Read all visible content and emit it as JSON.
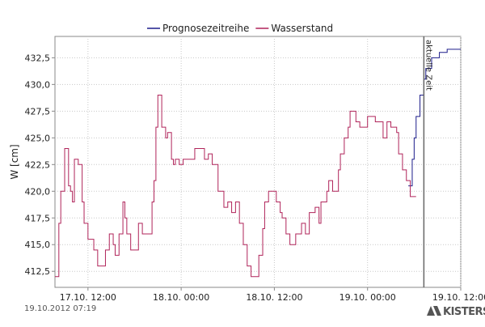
{
  "chart_data": {
    "type": "step-line",
    "y_label": "W [cm]",
    "xlim": [
      "17.10. 07:45",
      "19.10. 12:00"
    ],
    "xticks": [
      "17.10. 12:00",
      "18.10. 00:00",
      "18.10. 12:00",
      "19.10. 00:00",
      "19.10. 12:00"
    ],
    "ylim": [
      411,
      434.5
    ],
    "yticks": [
      {
        "value": 412.5,
        "label": "412,5"
      },
      {
        "value": 415,
        "label": "415,0"
      },
      {
        "value": 417.5,
        "label": "417,5"
      },
      {
        "value": 420,
        "label": "420,0"
      },
      {
        "value": 422.5,
        "label": "422,5"
      },
      {
        "value": 425,
        "label": "425,0"
      },
      {
        "value": 427.5,
        "label": "427,5"
      },
      {
        "value": 430,
        "label": "430,0"
      },
      {
        "value": 432.5,
        "label": "432,5"
      }
    ],
    "grid": true,
    "now": "19.10. 07:15",
    "now_label": "aktuelle Zeit",
    "series": [
      {
        "name": "Prognosezeitreihe",
        "color": "#1c1c8a",
        "x": [
          "19.10. 05:15",
          "19.10. 05:45",
          "19.10. 06:00",
          "19.10. 06:15",
          "19.10. 06:45",
          "19.10. 07:15",
          "19.10. 07:30",
          "19.10. 08:15",
          "19.10. 09:15",
          "19.10. 10:15",
          "19.10. 12:00"
        ],
        "values": [
          420.5,
          423,
          425,
          427,
          429,
          430.5,
          431.5,
          432.5,
          433,
          433.3,
          433.3
        ]
      },
      {
        "name": "Wasserstand",
        "color": "#b0245a",
        "x": [
          "17.10. 07:45",
          "17.10. 08:15",
          "17.10. 08:30",
          "17.10. 09:00",
          "17.10. 09:30",
          "17.10. 09:45",
          "17.10. 10:00",
          "17.10. 10:15",
          "17.10. 10:45",
          "17.10. 11:15",
          "17.10. 11:30",
          "17.10. 12:00",
          "17.10. 12:45",
          "17.10. 13:15",
          "17.10. 14:15",
          "17.10. 14:45",
          "17.10. 15:15",
          "17.10. 15:30",
          "17.10. 16:00",
          "17.10. 16:30",
          "17.10. 16:45",
          "17.10. 17:00",
          "17.10. 17:30",
          "17.10. 18:30",
          "17.10. 19:00",
          "17.10. 20:15",
          "17.10. 20:30",
          "17.10. 20:45",
          "17.10. 21:00",
          "17.10. 21:30",
          "17.10. 22:00",
          "17.10. 22:15",
          "17.10. 22:45",
          "17.10. 23:00",
          "17.10. 23:15",
          "17.10. 23:45",
          "18.10. 00:15",
          "18.10. 01:45",
          "18.10. 03:00",
          "18.10. 03:30",
          "18.10. 04:00",
          "18.10. 04:45",
          "18.10. 05:30",
          "18.10. 06:00",
          "18.10. 06:30",
          "18.10. 07:00",
          "18.10. 07:30",
          "18.10. 08:00",
          "18.10. 08:30",
          "18.10. 09:00",
          "18.10. 10:00",
          "18.10. 10:30",
          "18.10. 10:45",
          "18.10. 11:15",
          "18.10. 12:15",
          "18.10. 12:45",
          "18.10. 13:00",
          "18.10. 13:30",
          "18.10. 14:00",
          "18.10. 14:45",
          "18.10. 15:30",
          "18.10. 16:00",
          "18.10. 16:30",
          "18.10. 17:15",
          "18.10. 17:45",
          "18.10. 18:00",
          "18.10. 18:45",
          "18.10. 19:00",
          "18.10. 19:30",
          "18.10. 20:15",
          "18.10. 20:30",
          "18.10. 21:00",
          "18.10. 21:30",
          "18.10. 21:45",
          "18.10. 22:30",
          "18.10. 23:00",
          "19.10. 00:00",
          "19.10. 01:00",
          "19.10. 02:00",
          "19.10. 02:30",
          "19.10. 03:00",
          "19.10. 03:45",
          "19.10. 04:00",
          "19.10. 04:30",
          "19.10. 05:00",
          "19.10. 05:30",
          "19.10. 06:15"
        ],
        "values": [
          412,
          417,
          420,
          424,
          420.5,
          420,
          419,
          423,
          422.5,
          419,
          417,
          415.5,
          414.5,
          413,
          414.5,
          416,
          415,
          414,
          416,
          419,
          417.5,
          416,
          414.5,
          417,
          416,
          419,
          421,
          426,
          429,
          426,
          425,
          425.5,
          423,
          422.5,
          423,
          422.5,
          423,
          424,
          423,
          423.5,
          422.5,
          420,
          418.5,
          419,
          418,
          419,
          417,
          415,
          413,
          412,
          414,
          416.5,
          419,
          420,
          419,
          418,
          417.5,
          416,
          415,
          416,
          417,
          416,
          418,
          418.5,
          417,
          419,
          420,
          421,
          420,
          422,
          423.5,
          425,
          426,
          427.5,
          426.5,
          426,
          427,
          426.5,
          425,
          426.5,
          426,
          425.5,
          423.5,
          422,
          421,
          419.5,
          419.5
        ]
      }
    ],
    "timestamp": "19.10.2012  07:19",
    "brand": "KISTERS"
  }
}
